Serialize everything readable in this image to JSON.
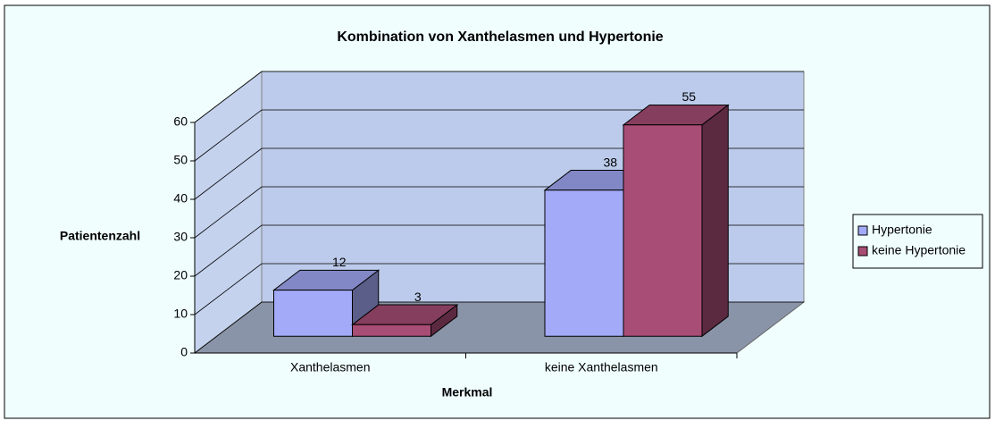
{
  "chart_data": {
    "type": "bar3d",
    "title": "Kombination von Xanthelasmen und Hypertonie",
    "categories": [
      "Xanthelasmen",
      "keine Xanthelasmen"
    ],
    "series": [
      {
        "name": "Hypertonie",
        "color": "#a3aaf7",
        "values": [
          12,
          38
        ]
      },
      {
        "name": "keine Hypertonie",
        "color": "#a84d75",
        "values": [
          3,
          55
        ]
      }
    ],
    "xlabel": "Merkmal",
    "ylabel": "Patientenzahl",
    "ylim": [
      0,
      60
    ],
    "yticks": [
      0,
      10,
      20,
      30,
      40,
      50,
      60
    ],
    "grid": true,
    "legend": "right"
  }
}
